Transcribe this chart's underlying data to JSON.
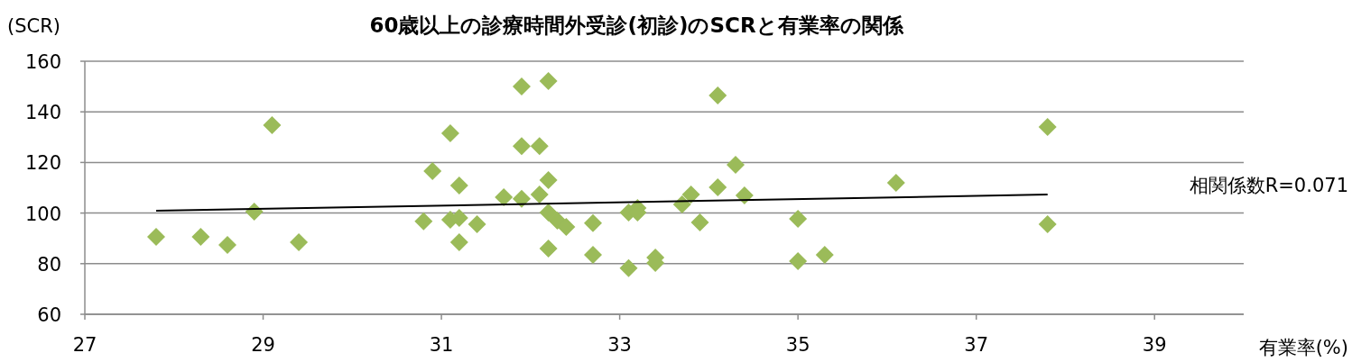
{
  "chart_data": {
    "type": "scatter",
    "title": "60歳以上の診療時間外受診(初診)のSCRと有業率の関係",
    "ylabel": "(SCR)",
    "xlabel": "有業率(%)",
    "xlim": [
      27,
      40
    ],
    "xticks": [
      27,
      29,
      31,
      33,
      35,
      37,
      39
    ],
    "ylim": [
      60,
      160
    ],
    "yticks": [
      60,
      80,
      100,
      120,
      140,
      160
    ],
    "grid": "y",
    "annotations": [
      "相関係数R=0.071"
    ],
    "series": [
      {
        "color": "#9bbb59",
        "marker": "diamond",
        "x": [
          27.8,
          28.3,
          28.6,
          28.9,
          29.1,
          29.4,
          30.8,
          30.9,
          31.1,
          31.1,
          31.2,
          31.2,
          31.2,
          31.4,
          31.7,
          31.9,
          31.9,
          31.9,
          32.1,
          32.1,
          32.2,
          32.2,
          32.2,
          32.2,
          32.3,
          32.4,
          32.7,
          32.7,
          33.1,
          33.1,
          33.2,
          33.2,
          33.4,
          33.4,
          33.7,
          33.8,
          33.9,
          34.1,
          34.1,
          34.3,
          34.4,
          35.0,
          35.0,
          35.3,
          36.1,
          37.8,
          37.8
        ],
        "values": [
          90.6,
          90.6,
          87.4,
          100.6,
          134.7,
          88.5,
          96.7,
          116.6,
          131.5,
          97.4,
          110.9,
          98.1,
          88.5,
          95.6,
          106.3,
          150,
          126.5,
          105.6,
          126.5,
          107.3,
          152.2,
          113,
          100.2,
          86,
          97,
          94.5,
          96,
          83.5,
          100.2,
          78.2,
          102,
          100.2,
          82.4,
          80.3,
          103.4,
          107.3,
          96.3,
          146.5,
          110.2,
          119.1,
          107,
          97.7,
          81,
          83.5,
          112,
          134,
          95.6
        ]
      },
      {
        "type": "line",
        "marker": "none",
        "color": "#000000",
        "x": [
          27.8,
          37.8
        ],
        "values": [
          100.9,
          107.3
        ]
      }
    ]
  }
}
